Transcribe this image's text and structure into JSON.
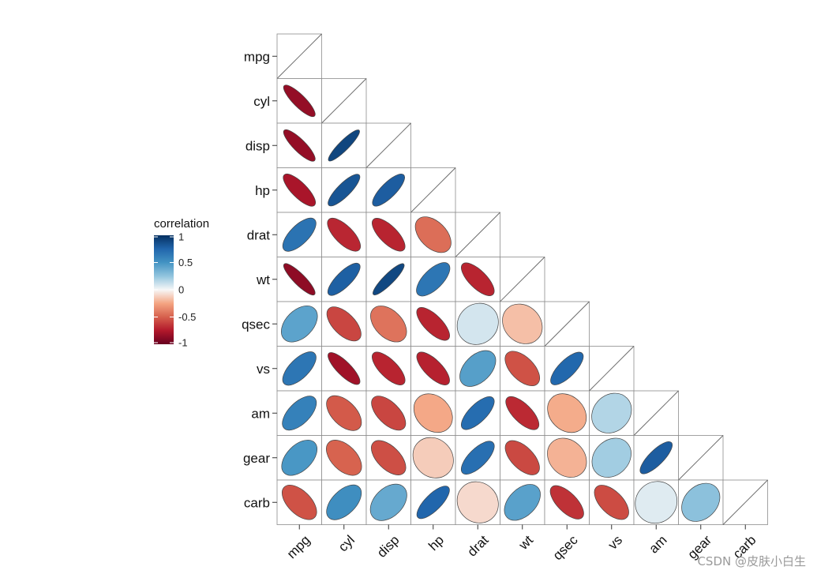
{
  "chart_data": {
    "type": "heatmap",
    "variables": [
      "mpg",
      "cyl",
      "disp",
      "hp",
      "drat",
      "wt",
      "qsec",
      "vs",
      "am",
      "gear",
      "carb"
    ],
    "legend": {
      "title": "correlation",
      "ticks": [
        "1",
        "0.5",
        "0",
        "-0.5",
        "-1"
      ],
      "tick_values": [
        1,
        0.5,
        0,
        -0.5,
        -1
      ],
      "limits": [
        -1,
        1
      ]
    },
    "colors": {
      "low": "#67001F",
      "mid": "#F7F7F7",
      "high": "#053061"
    },
    "matrix": [
      [
        1,
        -0.85,
        -0.85,
        -0.78,
        0.68,
        -0.87,
        0.42,
        0.66,
        0.6,
        0.48,
        -0.55
      ],
      [
        -0.85,
        1,
        0.9,
        0.83,
        -0.7,
        0.78,
        -0.59,
        -0.81,
        -0.52,
        -0.49,
        0.53
      ],
      [
        -0.85,
        0.9,
        1,
        0.79,
        -0.71,
        0.89,
        -0.43,
        -0.71,
        -0.59,
        -0.56,
        0.39
      ],
      [
        -0.78,
        0.83,
        0.79,
        1,
        -0.45,
        0.66,
        -0.71,
        -0.72,
        -0.24,
        -0.13,
        0.75
      ],
      [
        0.68,
        -0.7,
        -0.71,
        -0.45,
        1,
        -0.71,
        0.09,
        0.44,
        0.71,
        0.7,
        -0.09
      ],
      [
        -0.87,
        0.78,
        0.89,
        0.66,
        -0.71,
        1,
        -0.17,
        -0.55,
        -0.69,
        -0.58,
        0.43
      ],
      [
        0.42,
        -0.59,
        -0.43,
        -0.71,
        0.09,
        -0.17,
        1,
        0.74,
        -0.23,
        -0.21,
        -0.66
      ],
      [
        0.66,
        -0.81,
        -0.71,
        -0.72,
        0.44,
        -0.55,
        0.74,
        1,
        0.17,
        0.21,
        -0.57
      ],
      [
        0.6,
        -0.52,
        -0.59,
        -0.24,
        0.71,
        -0.69,
        -0.23,
        0.17,
        1,
        0.79,
        0.06
      ],
      [
        0.48,
        -0.49,
        -0.56,
        -0.13,
        0.7,
        -0.58,
        -0.21,
        0.21,
        0.79,
        1,
        0.27
      ],
      [
        -0.55,
        0.53,
        0.39,
        0.75,
        -0.09,
        0.43,
        -0.66,
        -0.57,
        0.06,
        0.27,
        1
      ]
    ]
  },
  "watermark": "CSDN @皮肤小白生"
}
